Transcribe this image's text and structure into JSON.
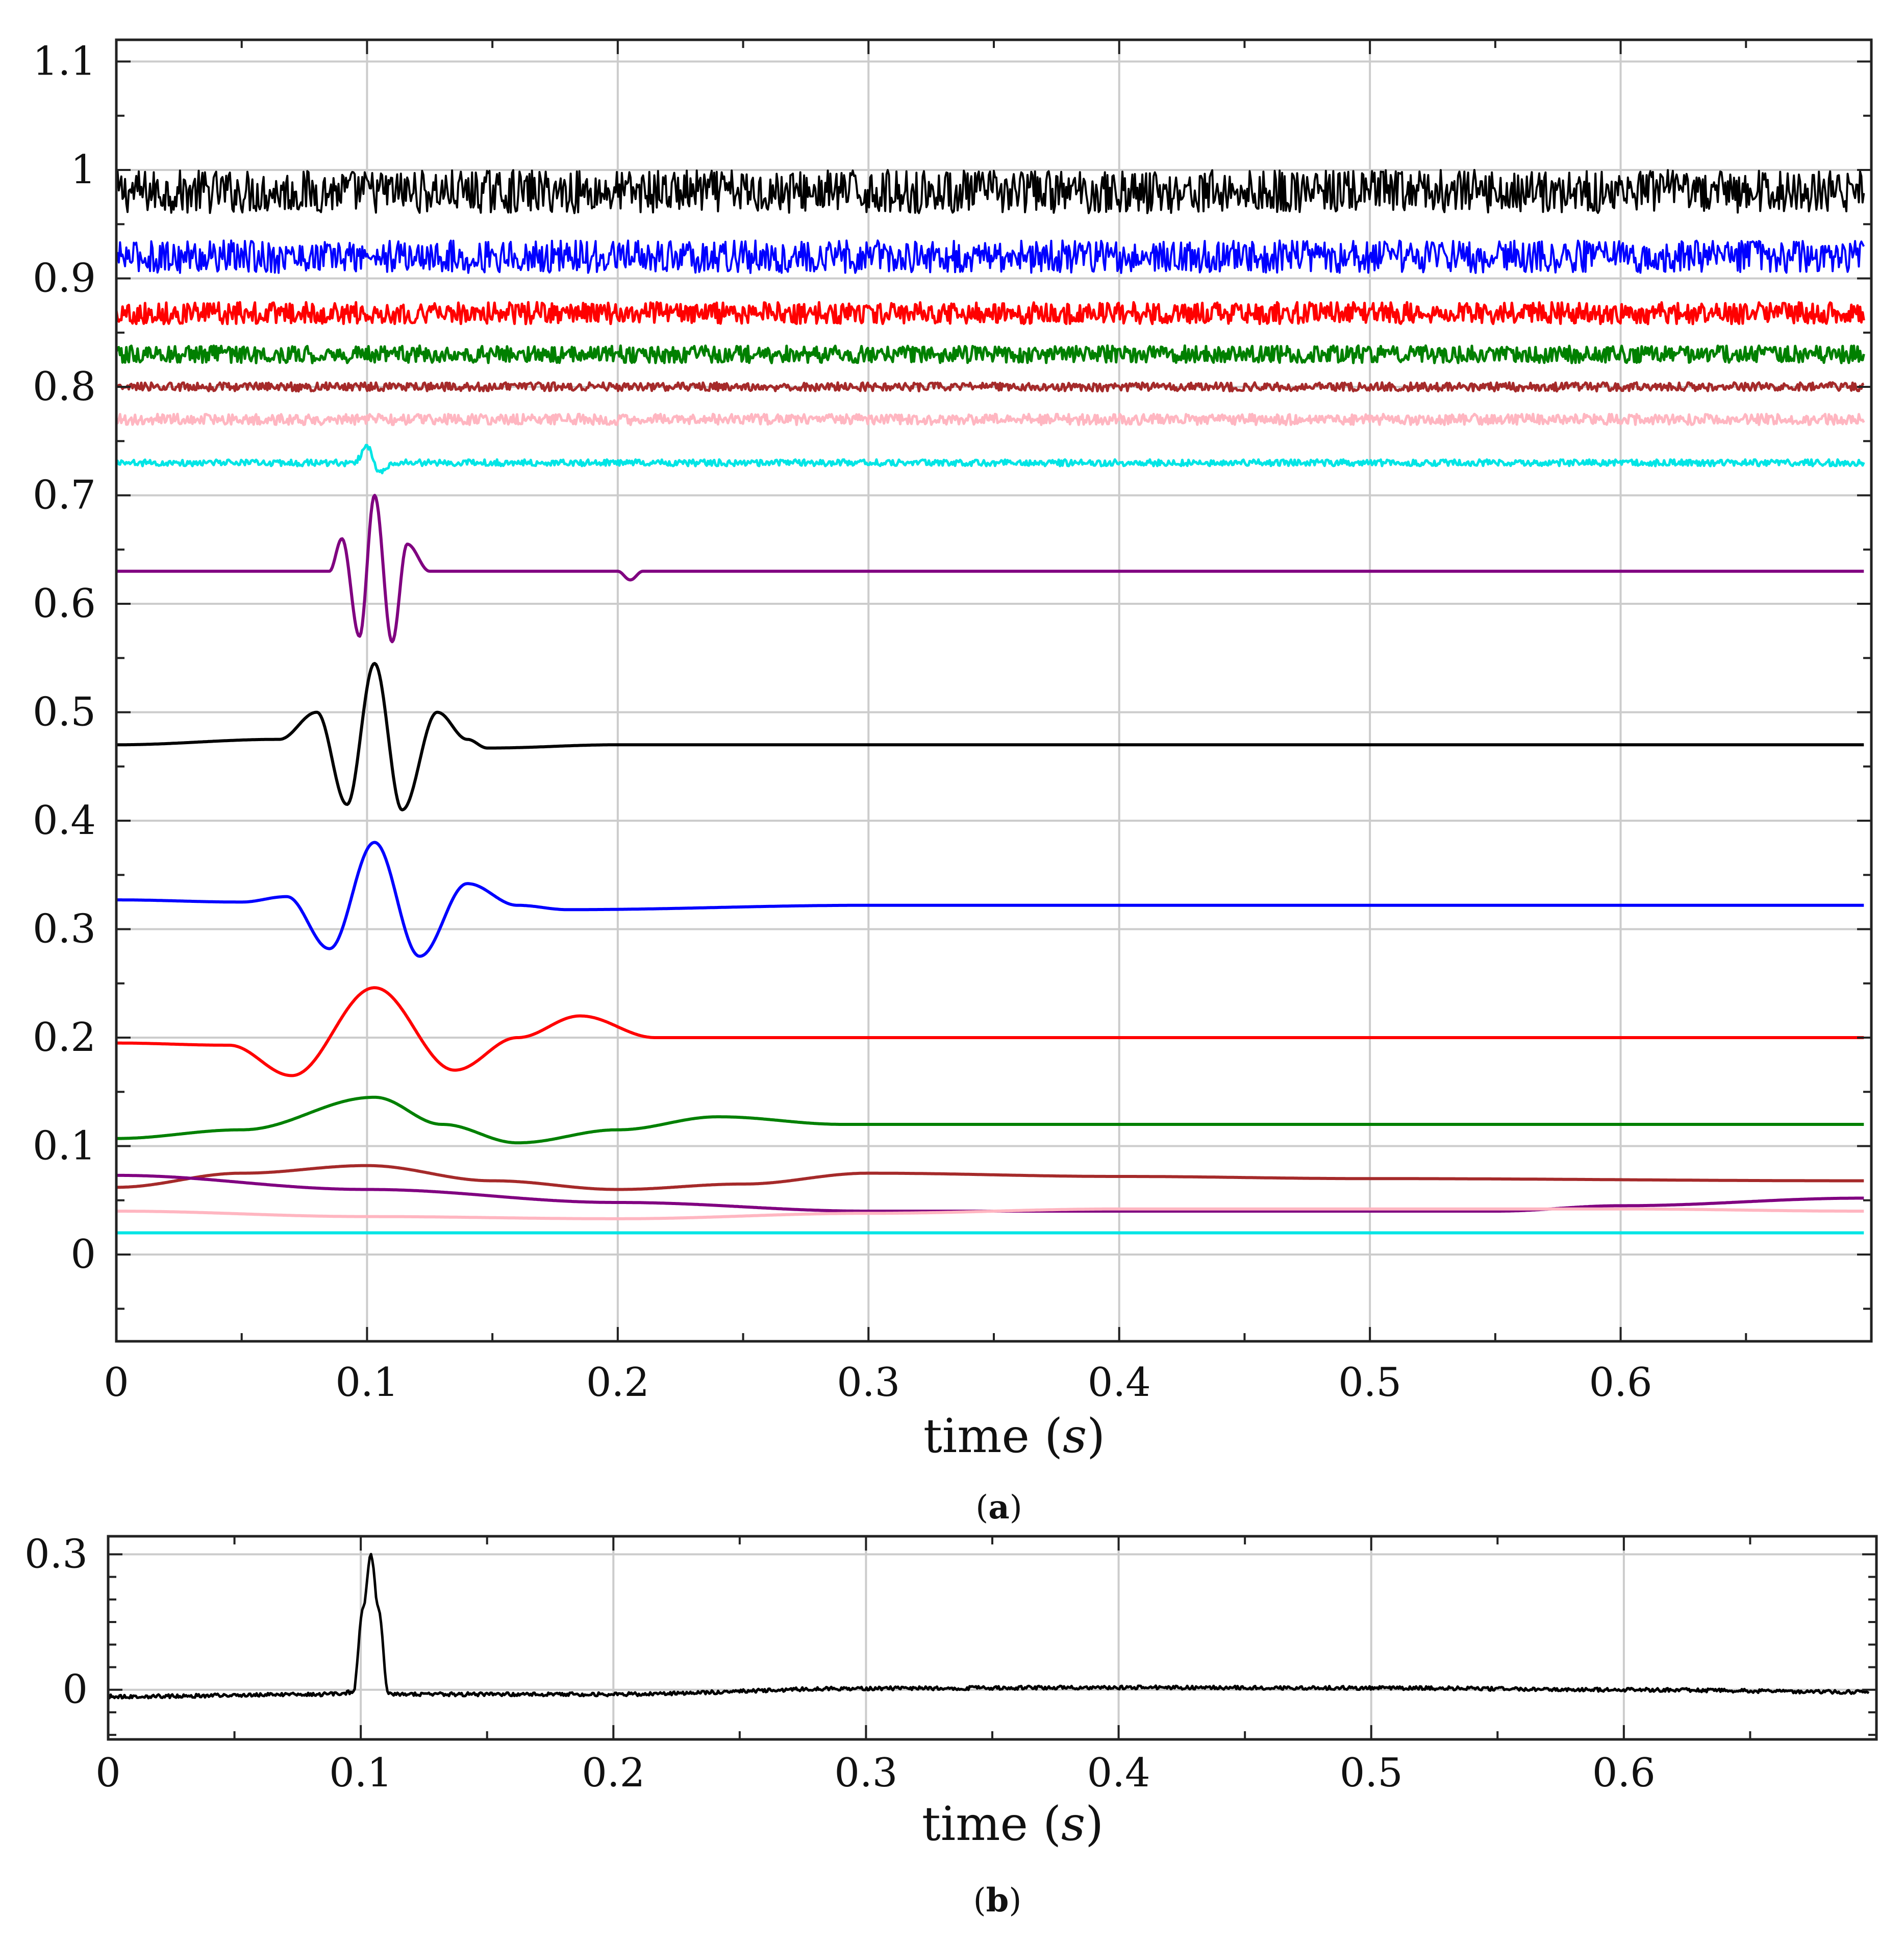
{
  "chart_data": [
    {
      "panel_label": "(a)",
      "type": "line",
      "xlabel": "time (s)",
      "xlim": [
        0,
        0.7
      ],
      "ylim": [
        -0.08,
        1.12
      ],
      "xticks": [
        0,
        0.1,
        0.2,
        0.3,
        0.4,
        0.5,
        0.6
      ],
      "xtick_labels": [
        "0",
        "0.1",
        "0.2",
        "0.3",
        "0.4",
        "0.5",
        "0.6"
      ],
      "yticks": [
        0,
        0.1,
        0.2,
        0.3,
        0.4,
        0.5,
        0.6,
        0.7,
        0.8,
        0.9,
        1,
        1.1
      ],
      "ytick_labels": [
        "0",
        "0.1",
        "0.2",
        "0.3",
        "0.4",
        "0.5",
        "0.6",
        "0.7",
        "0.8",
        "0.9",
        "1",
        "1.1"
      ],
      "grid": true,
      "series": [
        {
          "color": "#000000",
          "values": [
            [
              0,
              0.98
            ],
            [
              0.1,
              0.98
            ],
            [
              0.2,
              0.98
            ],
            [
              0.3,
              0.98
            ],
            [
              0.4,
              0.98
            ],
            [
              0.5,
              0.98
            ],
            [
              0.6,
              0.98
            ],
            [
              0.697,
              0.98
            ]
          ],
          "noise_amplitude": 0.02
        },
        {
          "color": "#0000ff",
          "values": [
            [
              0,
              0.92
            ],
            [
              0.2,
              0.92
            ],
            [
              0.4,
              0.92
            ],
            [
              0.6,
              0.92
            ],
            [
              0.697,
              0.92
            ]
          ],
          "noise_amplitude": 0.015
        },
        {
          "color": "#ff0000",
          "values": [
            [
              0,
              0.868
            ],
            [
              0.2,
              0.868
            ],
            [
              0.4,
              0.868
            ],
            [
              0.6,
              0.868
            ],
            [
              0.697,
              0.868
            ]
          ],
          "noise_amplitude": 0.01
        },
        {
          "color": "#008000",
          "values": [
            [
              0,
              0.83
            ],
            [
              0.2,
              0.83
            ],
            [
              0.4,
              0.83
            ],
            [
              0.6,
              0.83
            ],
            [
              0.697,
              0.83
            ]
          ],
          "noise_amplitude": 0.008
        },
        {
          "color": "#a52a2a",
          "values": [
            [
              0,
              0.8
            ],
            [
              0.2,
              0.8
            ],
            [
              0.4,
              0.8
            ],
            [
              0.6,
              0.8
            ],
            [
              0.697,
              0.8
            ]
          ],
          "noise_amplitude": 0.004
        },
        {
          "color": "#ffb6c1",
          "values": [
            [
              0,
              0.77
            ],
            [
              0.2,
              0.77
            ],
            [
              0.4,
              0.77
            ],
            [
              0.6,
              0.77
            ],
            [
              0.697,
              0.77
            ]
          ],
          "noise_amplitude": 0.005
        },
        {
          "color": "#00e5e5",
          "values": [
            [
              0,
              0.73
            ],
            [
              0.095,
              0.73
            ],
            [
              0.1,
              0.745
            ],
            [
              0.105,
              0.72
            ],
            [
              0.11,
              0.73
            ],
            [
              0.3,
              0.73
            ],
            [
              0.5,
              0.73
            ],
            [
              0.697,
              0.73
            ]
          ],
          "noise_amplitude": 0.003
        },
        {
          "color": "#800080",
          "values": [
            [
              0,
              0.63
            ],
            [
              0.085,
              0.63
            ],
            [
              0.09,
              0.66
            ],
            [
              0.097,
              0.57
            ],
            [
              0.103,
              0.7
            ],
            [
              0.11,
              0.565
            ],
            [
              0.116,
              0.655
            ],
            [
              0.125,
              0.63
            ],
            [
              0.2,
              0.63
            ],
            [
              0.205,
              0.622
            ],
            [
              0.21,
              0.63
            ],
            [
              0.697,
              0.63
            ]
          ]
        },
        {
          "color": "#000000",
          "values": [
            [
              0,
              0.47
            ],
            [
              0.065,
              0.475
            ],
            [
              0.08,
              0.5
            ],
            [
              0.092,
              0.415
            ],
            [
              0.103,
              0.545
            ],
            [
              0.114,
              0.41
            ],
            [
              0.128,
              0.5
            ],
            [
              0.14,
              0.475
            ],
            [
              0.148,
              0.467
            ],
            [
              0.2,
              0.47
            ],
            [
              0.697,
              0.47
            ]
          ]
        },
        {
          "color": "#0000ff",
          "values": [
            [
              0,
              0.327
            ],
            [
              0.05,
              0.325
            ],
            [
              0.068,
              0.33
            ],
            [
              0.085,
              0.282
            ],
            [
              0.103,
              0.38
            ],
            [
              0.121,
              0.275
            ],
            [
              0.14,
              0.342
            ],
            [
              0.16,
              0.322
            ],
            [
              0.18,
              0.318
            ],
            [
              0.3,
              0.322
            ],
            [
              0.697,
              0.322
            ]
          ]
        },
        {
          "color": "#ff0000",
          "values": [
            [
              0,
              0.195
            ],
            [
              0.045,
              0.193
            ],
            [
              0.07,
              0.165
            ],
            [
              0.103,
              0.246
            ],
            [
              0.135,
              0.17
            ],
            [
              0.16,
              0.2
            ],
            [
              0.185,
              0.22
            ],
            [
              0.215,
              0.2
            ],
            [
              0.3,
              0.2
            ],
            [
              0.697,
              0.2
            ]
          ]
        },
        {
          "color": "#008000",
          "values": [
            [
              0,
              0.107
            ],
            [
              0.05,
              0.115
            ],
            [
              0.103,
              0.145
            ],
            [
              0.13,
              0.12
            ],
            [
              0.16,
              0.103
            ],
            [
              0.2,
              0.115
            ],
            [
              0.24,
              0.127
            ],
            [
              0.29,
              0.12
            ],
            [
              0.4,
              0.12
            ],
            [
              0.697,
              0.12
            ]
          ]
        },
        {
          "color": "#a52a2a",
          "values": [
            [
              0,
              0.062
            ],
            [
              0.05,
              0.075
            ],
            [
              0.1,
              0.082
            ],
            [
              0.15,
              0.068
            ],
            [
              0.2,
              0.06
            ],
            [
              0.25,
              0.065
            ],
            [
              0.3,
              0.075
            ],
            [
              0.4,
              0.072
            ],
            [
              0.5,
              0.07
            ],
            [
              0.697,
              0.068
            ]
          ]
        },
        {
          "color": "#800080",
          "values": [
            [
              0,
              0.073
            ],
            [
              0.1,
              0.06
            ],
            [
              0.2,
              0.048
            ],
            [
              0.3,
              0.04
            ],
            [
              0.4,
              0.04
            ],
            [
              0.55,
              0.04
            ],
            [
              0.6,
              0.045
            ],
            [
              0.697,
              0.052
            ]
          ]
        },
        {
          "color": "#ffb6c1",
          "values": [
            [
              0,
              0.04
            ],
            [
              0.1,
              0.035
            ],
            [
              0.2,
              0.033
            ],
            [
              0.3,
              0.038
            ],
            [
              0.4,
              0.042
            ],
            [
              0.5,
              0.042
            ],
            [
              0.6,
              0.042
            ],
            [
              0.697,
              0.04
            ]
          ]
        },
        {
          "color": "#00e5e5",
          "values": [
            [
              0,
              0.02
            ],
            [
              0.697,
              0.02
            ]
          ]
        }
      ]
    },
    {
      "panel_label": "(b)",
      "type": "line",
      "xlabel": "time (s)",
      "xlim": [
        0,
        0.7
      ],
      "ylim": [
        -0.11,
        0.34
      ],
      "xticks": [
        0,
        0.1,
        0.2,
        0.3,
        0.4,
        0.5,
        0.6
      ],
      "xtick_labels": [
        "0",
        "0.1",
        "0.2",
        "0.3",
        "0.4",
        "0.5",
        "0.6"
      ],
      "yticks": [
        0,
        0.3
      ],
      "ytick_labels": [
        "0",
        "0.3"
      ],
      "grid": true,
      "series": [
        {
          "color": "#000000",
          "values": [
            [
              0,
              -0.015
            ],
            [
              0.09,
              -0.01
            ],
            [
              0.097,
              -0.005
            ],
            [
              0.101,
              0.18
            ],
            [
              0.104,
              0.3
            ],
            [
              0.107,
              0.18
            ],
            [
              0.111,
              -0.01
            ],
            [
              0.2,
              -0.01
            ],
            [
              0.3,
              0.003
            ],
            [
              0.4,
              0.005
            ],
            [
              0.5,
              0.004
            ],
            [
              0.6,
              0.0
            ],
            [
              0.697,
              -0.005
            ]
          ],
          "noise_amplitude": 0.004
        }
      ]
    }
  ]
}
